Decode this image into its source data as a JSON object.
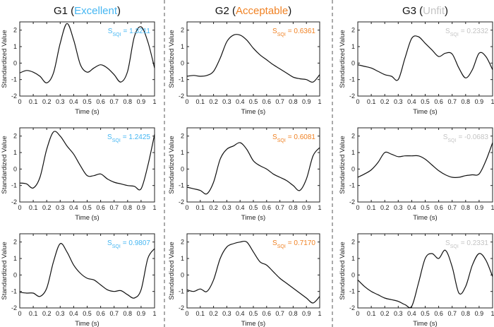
{
  "colors": {
    "Excellent": "#45B6F2",
    "Acceptable": "#F08224",
    "Unfit": "#C4C4C4"
  },
  "chart_data": {
    "type": "line",
    "xlabel": "Time (s)",
    "ylabel": "Standardized Value",
    "xlim": [
      0,
      1
    ],
    "ylim": [
      -2,
      2.5
    ],
    "xticks": [
      "0",
      "0.1",
      "0.2",
      "0.3",
      "0.4",
      "0.5",
      "0.6",
      "0.7",
      "0.8",
      "0.9",
      "1"
    ],
    "yticks": [
      "-2",
      "-1",
      "0",
      "1",
      "2"
    ],
    "x": [
      0,
      0.05,
      0.1,
      0.15,
      0.2,
      0.25,
      0.3,
      0.35,
      0.4,
      0.45,
      0.5,
      0.55,
      0.6,
      0.65,
      0.7,
      0.75,
      0.8,
      0.85,
      0.9,
      0.95,
      1
    ],
    "groups": [
      {
        "name": "G1",
        "quality": "Excellent",
        "panels": [
          {
            "sqi_label": "S",
            "sqi_sub": "SQI",
            "sqi": "= 1.3211",
            "y": [
              -0.6,
              -0.45,
              -0.55,
              -0.8,
              -1.2,
              -0.6,
              1.2,
              2.4,
              1.4,
              -0.1,
              -0.55,
              -0.3,
              -0.1,
              -0.3,
              -0.7,
              -1.15,
              -0.5,
              1.6,
              2.2,
              1.3,
              -0.3
            ]
          },
          {
            "sqi_label": "S",
            "sqi_sub": "SQI",
            "sqi": "= 1.2425",
            "y": [
              -0.85,
              -0.9,
              -1.15,
              -0.5,
              1.2,
              2.25,
              2.0,
              1.4,
              0.9,
              0.2,
              -0.4,
              -0.4,
              -0.3,
              -0.6,
              -0.8,
              -0.9,
              -1.0,
              -1.05,
              -1.2,
              0.2,
              2.1
            ]
          },
          {
            "sqi_label": "S",
            "sqi_sub": "SQI",
            "sqi": "= 0.9807",
            "y": [
              -1.05,
              -1.1,
              -1.1,
              -1.3,
              -0.8,
              0.8,
              1.9,
              1.4,
              0.6,
              0.1,
              -0.2,
              -0.3,
              -0.6,
              -0.9,
              -1.0,
              -0.95,
              -1.2,
              -1.4,
              -0.9,
              1.0,
              1.6
            ]
          }
        ]
      },
      {
        "name": "G2",
        "quality": "Acceptable",
        "panels": [
          {
            "sqi_label": "S",
            "sqi_sub": "SQI",
            "sqi": "= 0.6361",
            "y": [
              -0.8,
              -0.75,
              -0.8,
              -0.75,
              -0.5,
              0.3,
              1.3,
              1.7,
              1.7,
              1.4,
              0.9,
              0.5,
              0.2,
              -0.1,
              -0.35,
              -0.6,
              -0.85,
              -0.95,
              -1.0,
              -1.15,
              -0.7
            ]
          },
          {
            "sqi_label": "S",
            "sqi_sub": "SQI",
            "sqi": "= 0.6081",
            "y": [
              -1.1,
              -1.2,
              -1.3,
              -1.5,
              -0.8,
              0.6,
              1.2,
              1.4,
              1.6,
              1.2,
              0.5,
              0.2,
              0.0,
              -0.3,
              -0.5,
              -0.7,
              -1.0,
              -1.3,
              -0.6,
              0.8,
              1.3
            ]
          },
          {
            "sqi_label": "S",
            "sqi_sub": "SQI",
            "sqi": "= 0.7170",
            "y": [
              -0.9,
              -1.0,
              -0.85,
              -1.0,
              -0.3,
              1.0,
              1.7,
              1.9,
              2.0,
              2.0,
              1.4,
              0.8,
              0.6,
              0.2,
              -0.2,
              -0.5,
              -0.8,
              -1.1,
              -1.4,
              -1.7,
              -1.3
            ]
          }
        ]
      },
      {
        "name": "G3",
        "quality": "Unfit",
        "panels": [
          {
            "sqi_label": "S",
            "sqi_sub": "SQI",
            "sqi": "= 0.2332",
            "y": [
              -0.1,
              -0.2,
              -0.3,
              -0.5,
              -0.7,
              -0.8,
              -1.0,
              0.3,
              1.5,
              1.6,
              1.2,
              0.8,
              0.4,
              0.6,
              0.55,
              -0.3,
              -0.9,
              -0.4,
              0.6,
              0.4,
              -0.4
            ]
          },
          {
            "sqi_label": "S",
            "sqi_sub": "SQI",
            "sqi": "= -0.0683",
            "y": [
              -0.5,
              -0.3,
              -0.05,
              0.4,
              1.0,
              0.9,
              0.75,
              0.8,
              0.8,
              0.8,
              0.6,
              0.25,
              -0.1,
              -0.35,
              -0.5,
              -0.5,
              -0.4,
              -0.35,
              -0.3,
              0.5,
              1.6
            ]
          },
          {
            "sqi_label": "S",
            "sqi_sub": "SQI",
            "sqi": "= 0.2331",
            "y": [
              -0.3,
              -0.7,
              -1.0,
              -1.2,
              -1.4,
              -1.5,
              -1.6,
              -1.8,
              -1.9,
              -0.5,
              1.0,
              1.3,
              1.0,
              1.5,
              0.5,
              -1.1,
              -0.7,
              0.6,
              1.3,
              0.9,
              -0.1
            ]
          }
        ]
      }
    ]
  }
}
